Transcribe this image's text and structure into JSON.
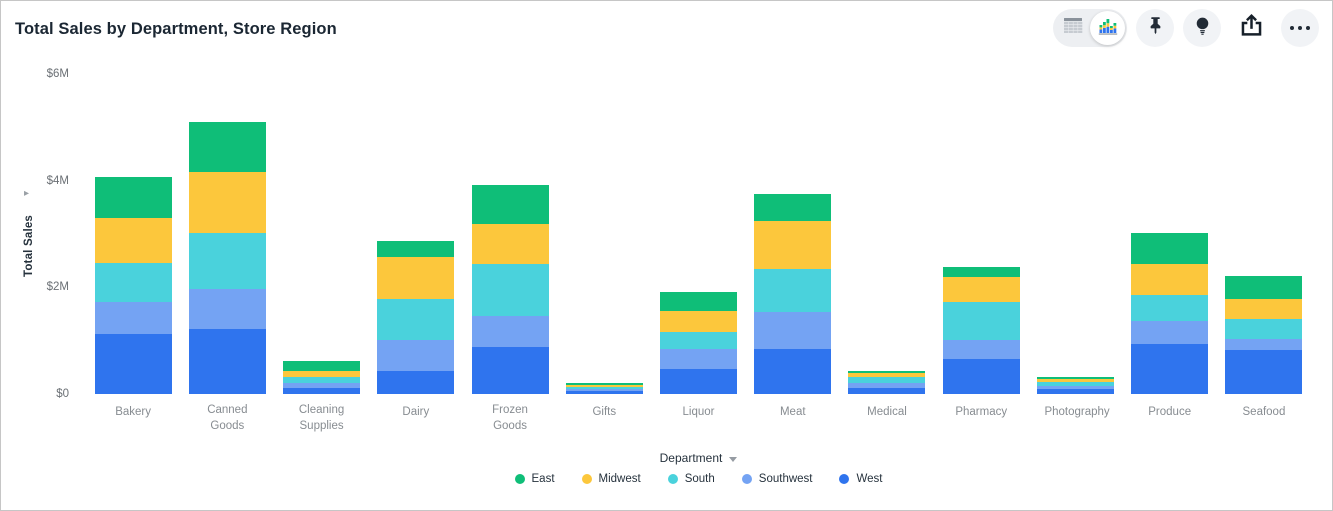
{
  "header": {
    "title": "Total Sales by Department, Store Region",
    "toolbar": {
      "view_toggle": {
        "options": [
          "table-view",
          "chart-view"
        ],
        "active": "chart-view"
      },
      "buttons": [
        "pin",
        "lightbulb",
        "share",
        "more"
      ]
    }
  },
  "chart_data": {
    "type": "bar",
    "stacked": true,
    "title": "Total Sales by Department, Store Region",
    "xlabel": "Department",
    "ylabel": "Total Sales",
    "unit": "USD millions",
    "ylim": [
      0,
      6
    ],
    "grid": false,
    "legend_position": "bottom",
    "yticks": [
      {
        "label": "$0",
        "value": 0
      },
      {
        "label": "$2M",
        "value": 2
      },
      {
        "label": "$4M",
        "value": 4
      },
      {
        "label": "$6M",
        "value": 6
      }
    ],
    "categories": [
      "Bakery",
      "Canned Goods",
      "Cleaning Supplies",
      "Dairy",
      "Frozen Goods",
      "Gifts",
      "Liquor",
      "Meat",
      "Medical",
      "Pharmacy",
      "Photography",
      "Produce",
      "Seafood"
    ],
    "stack_order_bottom_to_top": [
      "West",
      "Southwest",
      "South",
      "Midwest",
      "East"
    ],
    "series": [
      {
        "name": "East",
        "color": "#0FBE78",
        "values": [
          0.76,
          0.94,
          0.17,
          0.3,
          0.73,
          0.03,
          0.36,
          0.51,
          0.04,
          0.18,
          0.03,
          0.58,
          0.44
        ]
      },
      {
        "name": "Midwest",
        "color": "#FCC73C",
        "values": [
          0.86,
          1.14,
          0.13,
          0.78,
          0.75,
          0.04,
          0.4,
          0.91,
          0.08,
          0.48,
          0.06,
          0.59,
          0.37
        ]
      },
      {
        "name": "South",
        "color": "#4AD2DC",
        "values": [
          0.73,
          1.06,
          0.11,
          0.78,
          0.98,
          0.04,
          0.32,
          0.8,
          0.11,
          0.71,
          0.08,
          0.48,
          0.37
        ]
      },
      {
        "name": "Southwest",
        "color": "#74A3F3",
        "values": [
          0.6,
          0.74,
          0.09,
          0.57,
          0.58,
          0.04,
          0.37,
          0.69,
          0.09,
          0.36,
          0.06,
          0.44,
          0.22
        ]
      },
      {
        "name": "West",
        "color": "#2F74EE",
        "values": [
          1.12,
          1.22,
          0.11,
          0.44,
          0.88,
          0.06,
          0.47,
          0.85,
          0.12,
          0.65,
          0.09,
          0.93,
          0.82
        ]
      }
    ]
  }
}
